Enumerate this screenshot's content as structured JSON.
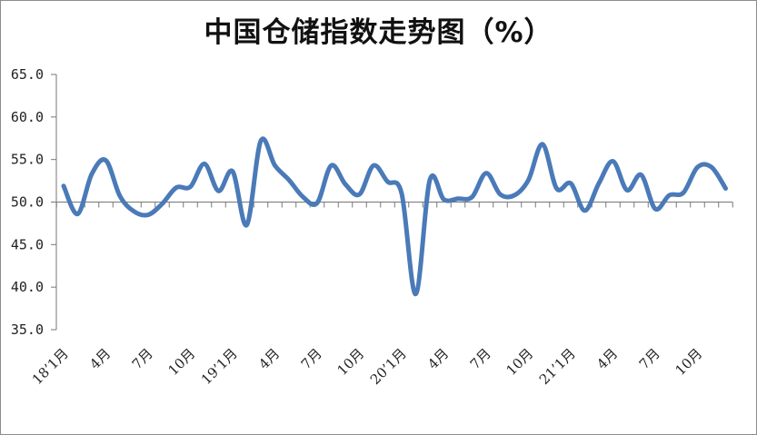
{
  "chart_data": {
    "type": "line",
    "title": "中国仓储指数走势图（%）",
    "xlabel": "",
    "ylabel": "",
    "ylim": [
      35,
      65
    ],
    "yticks": [
      "35.0",
      "40.0",
      "45.0",
      "50.0",
      "55.0",
      "60.0",
      "65.0"
    ],
    "x_reference": 50,
    "grid": false,
    "line_color": "#4a7ab8",
    "x_labels": [
      {
        "index": 0,
        "text": "18’1月"
      },
      {
        "index": 3,
        "text": "4月"
      },
      {
        "index": 6,
        "text": "7月"
      },
      {
        "index": 9,
        "text": "10月"
      },
      {
        "index": 12,
        "text": "19’1月"
      },
      {
        "index": 15,
        "text": "4月"
      },
      {
        "index": 18,
        "text": "7月"
      },
      {
        "index": 21,
        "text": "10月"
      },
      {
        "index": 24,
        "text": "20’1月"
      },
      {
        "index": 27,
        "text": "4月"
      },
      {
        "index": 30,
        "text": "7月"
      },
      {
        "index": 33,
        "text": "10月"
      },
      {
        "index": 36,
        "text": "21’1月"
      },
      {
        "index": 39,
        "text": "4月"
      },
      {
        "index": 42,
        "text": "7月"
      },
      {
        "index": 45,
        "text": "10月"
      }
    ],
    "series": [
      {
        "values": [
          51.9,
          48.6,
          53.3,
          54.9,
          50.7,
          48.9,
          48.5,
          49.8,
          51.7,
          51.8,
          54.5,
          51.3,
          53.6,
          47.3,
          57.2,
          54.3,
          52.6,
          50.6,
          49.9,
          54.3,
          52.1,
          50.9,
          54.3,
          52.4,
          51.0,
          39.2,
          52.6,
          50.3,
          50.4,
          50.6,
          53.4,
          50.9,
          50.8,
          52.6,
          56.8,
          51.6,
          52.2,
          49.0,
          52.2,
          54.8,
          51.4,
          53.2,
          49.2,
          50.8,
          51.1,
          54.1,
          54.1,
          51.6
        ]
      }
    ]
  }
}
